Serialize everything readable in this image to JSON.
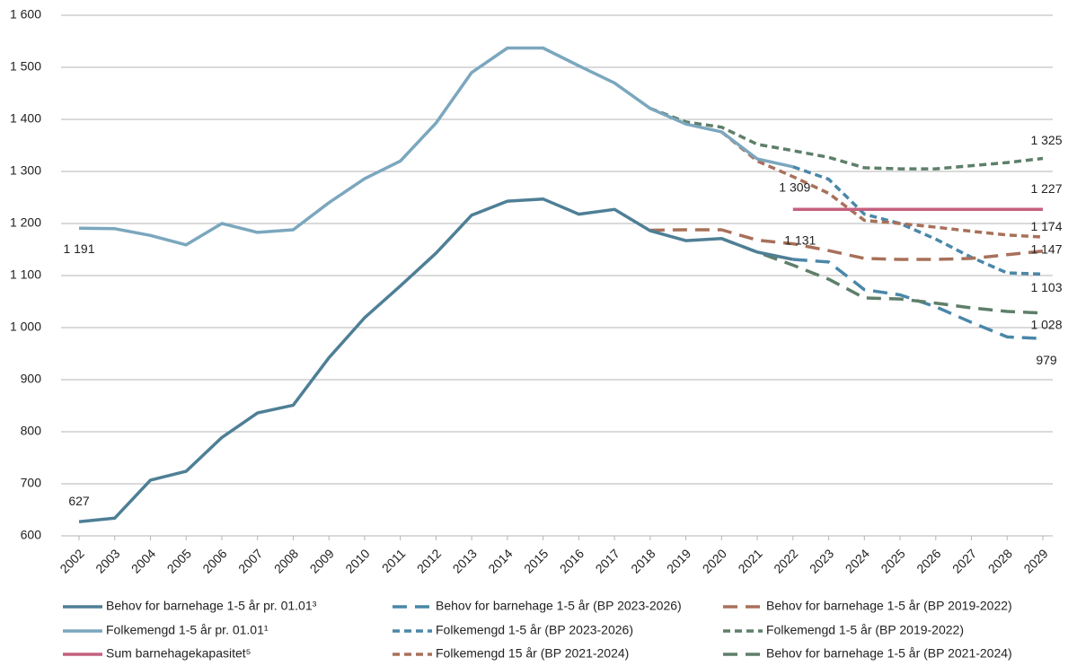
{
  "chart_data": {
    "type": "line",
    "categories": [
      "2002",
      "2003",
      "2004",
      "2005",
      "2006",
      "2007",
      "2008",
      "2009",
      "2010",
      "2011",
      "2012",
      "2013",
      "2014",
      "2015",
      "2016",
      "2017",
      "2018",
      "2019",
      "2020",
      "2021",
      "2022",
      "2023",
      "2024",
      "2025",
      "2026",
      "2027",
      "2028",
      "2029"
    ],
    "ylim": [
      600,
      1600
    ],
    "yticks": [
      600,
      700,
      800,
      900,
      {
        "value": 1000,
        "label": "1 000"
      },
      {
        "value": 1100,
        "label": "1 100"
      },
      {
        "value": 1200,
        "label": "1 200"
      },
      {
        "value": 1300,
        "label": "1 300"
      },
      {
        "value": 1400,
        "label": "1 400"
      },
      {
        "value": 1500,
        "label": "1 500"
      },
      {
        "value": 1600,
        "label": "1 600"
      }
    ],
    "grid": true,
    "legend": "bottom",
    "series": [
      {
        "name": "Behov for barnehage 1-5 år pr. 01.01³",
        "color": "#4e7f96",
        "dash": "solid",
        "values": [
          627,
          634,
          707,
          724,
          789,
          836,
          851,
          942,
          1019,
          1080,
          1143,
          1216,
          1243,
          1247,
          1218,
          1227,
          1186,
          1167,
          1171,
          1145,
          1131,
          null,
          null,
          null,
          null,
          null,
          null,
          null
        ],
        "value_labels": [
          "627",
          null,
          null,
          null,
          null,
          null,
          null,
          null,
          null,
          null,
          null,
          null,
          null,
          null,
          null,
          null,
          null,
          null,
          null,
          null,
          "1 131",
          null,
          null,
          null,
          null,
          null,
          null,
          null
        ]
      },
      {
        "name": "Folkemengd 1-5 år pr. 01.01¹",
        "color": "#7ba7be",
        "dash": "solid",
        "values": [
          1191,
          1190,
          1177,
          1159,
          1200,
          1183,
          1188,
          1240,
          1286,
          1320,
          1393,
          1490,
          1537,
          1537,
          1503,
          1470,
          1421,
          1391,
          1376,
          1324,
          1309,
          null,
          null,
          null,
          null,
          null,
          null,
          null
        ],
        "value_labels": [
          "1 191",
          null,
          null,
          null,
          null,
          null,
          null,
          null,
          null,
          null,
          null,
          null,
          null,
          null,
          null,
          null,
          null,
          null,
          null,
          null,
          "1 309",
          null,
          null,
          null,
          null,
          null,
          null,
          null
        ]
      },
      {
        "name": "Sum barnehagekapasitet⁵",
        "color": "#c4607e",
        "dash": "solid",
        "values": [
          null,
          null,
          null,
          null,
          null,
          null,
          null,
          null,
          null,
          null,
          null,
          null,
          null,
          null,
          null,
          null,
          null,
          null,
          null,
          null,
          1227,
          1227,
          1227,
          1227,
          1227,
          1227,
          1227,
          1227
        ],
        "value_labels": [
          null,
          null,
          null,
          null,
          null,
          null,
          null,
          null,
          null,
          null,
          null,
          null,
          null,
          null,
          null,
          null,
          null,
          null,
          null,
          null,
          null,
          null,
          null,
          null,
          null,
          null,
          null,
          "1 227"
        ]
      },
      {
        "name": "Behov for barnehage 1-5 år (BP 2023-2026)",
        "color": "#4a87a8",
        "dash": "long",
        "values": [
          null,
          null,
          null,
          null,
          null,
          null,
          null,
          null,
          null,
          null,
          null,
          null,
          null,
          null,
          null,
          null,
          null,
          null,
          null,
          null,
          1131,
          1126,
          1073,
          1063,
          1040,
          1010,
          982,
          979
        ],
        "value_labels": [
          null,
          null,
          null,
          null,
          null,
          null,
          null,
          null,
          null,
          null,
          null,
          null,
          null,
          null,
          null,
          null,
          null,
          null,
          null,
          null,
          null,
          null,
          null,
          null,
          null,
          null,
          null,
          "979"
        ]
      },
      {
        "name": "Folkemengd 1-5 år (BP 2023-2026)",
        "color": "#4a87a8",
        "dash": "short",
        "values": [
          null,
          null,
          null,
          null,
          null,
          null,
          null,
          null,
          null,
          null,
          null,
          null,
          null,
          null,
          null,
          null,
          null,
          null,
          null,
          null,
          1309,
          1285,
          1218,
          1200,
          1170,
          1135,
          1105,
          1103
        ],
        "value_labels": [
          null,
          null,
          null,
          null,
          null,
          null,
          null,
          null,
          null,
          null,
          null,
          null,
          null,
          null,
          null,
          null,
          null,
          null,
          null,
          null,
          null,
          null,
          null,
          null,
          null,
          null,
          null,
          "1 103"
        ]
      },
      {
        "name": "Folkemengd 15 år (BP 2021-2024)",
        "color": "#a8705a",
        "dash": "short",
        "values": [
          null,
          null,
          null,
          null,
          null,
          null,
          null,
          null,
          null,
          null,
          null,
          null,
          null,
          null,
          null,
          null,
          null,
          null,
          1376,
          1320,
          1290,
          1258,
          1206,
          1200,
          1193,
          1185,
          1178,
          1174
        ],
        "value_labels": [
          null,
          null,
          null,
          null,
          null,
          null,
          null,
          null,
          null,
          null,
          null,
          null,
          null,
          null,
          null,
          null,
          null,
          null,
          null,
          null,
          null,
          null,
          null,
          null,
          null,
          null,
          null,
          "1 174"
        ]
      },
      {
        "name": "Behov for barnehage 1-5 år (BP 2019-2022)",
        "color": "#a8705a",
        "dash": "long",
        "values": [
          null,
          null,
          null,
          null,
          null,
          null,
          null,
          null,
          null,
          null,
          null,
          null,
          null,
          null,
          null,
          null,
          1187,
          1188,
          1188,
          1168,
          1161,
          1148,
          1133,
          1131,
          1131,
          1133,
          1140,
          1147
        ],
        "value_labels": [
          null,
          null,
          null,
          null,
          null,
          null,
          null,
          null,
          null,
          null,
          null,
          null,
          null,
          null,
          null,
          null,
          null,
          null,
          null,
          null,
          null,
          null,
          null,
          null,
          null,
          null,
          null,
          "1 147"
        ]
      },
      {
        "name": "Folkemengd 1-5 år (BP 2019-2022)",
        "color": "#5e7f6a",
        "dash": "short",
        "values": [
          null,
          null,
          null,
          null,
          null,
          null,
          null,
          null,
          null,
          null,
          null,
          null,
          null,
          null,
          null,
          null,
          1421,
          1395,
          1385,
          1352,
          1340,
          1327,
          1307,
          1305,
          1305,
          1311,
          1317,
          1325
        ],
        "value_labels": [
          null,
          null,
          null,
          null,
          null,
          null,
          null,
          null,
          null,
          null,
          null,
          null,
          null,
          null,
          null,
          null,
          null,
          null,
          null,
          null,
          null,
          null,
          null,
          null,
          null,
          null,
          null,
          "1 325"
        ]
      },
      {
        "name": "Behov for barnehage 1-5 år (BP 2021-2024)",
        "color": "#5e7f6a",
        "dash": "long",
        "values": [
          null,
          null,
          null,
          null,
          null,
          null,
          null,
          null,
          null,
          null,
          null,
          null,
          null,
          null,
          null,
          null,
          null,
          null,
          1171,
          1145,
          1120,
          1093,
          1057,
          1055,
          1047,
          1038,
          1031,
          1028
        ],
        "value_labels": [
          null,
          null,
          null,
          null,
          null,
          null,
          null,
          null,
          null,
          null,
          null,
          null,
          null,
          null,
          null,
          null,
          null,
          null,
          null,
          null,
          null,
          null,
          null,
          null,
          null,
          null,
          null,
          "1 028"
        ]
      }
    ]
  }
}
